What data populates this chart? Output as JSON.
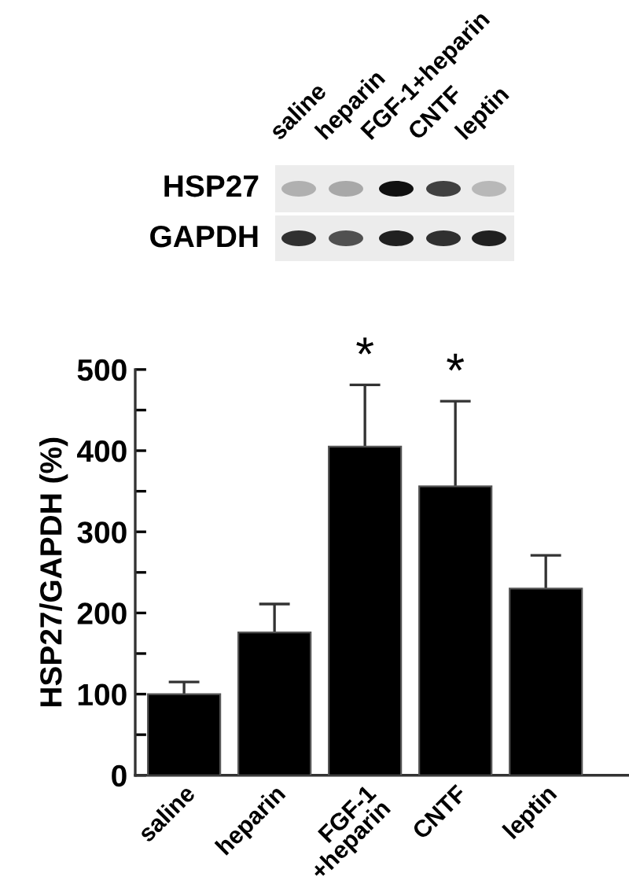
{
  "chart_data": {
    "type": "bar",
    "ylabel": "HSP27/GAPDH (%)",
    "categories": [
      "saline",
      "heparin",
      "FGF-1\n+heparin",
      "CNTF",
      "leptin"
    ],
    "values": [
      100,
      176,
      405,
      356,
      230
    ],
    "errors": [
      15,
      35,
      76,
      105,
      41
    ],
    "color": "#000000",
    "ylim": [
      0,
      500
    ],
    "yticks": [
      0,
      {
        "value": 50,
        "label": null
      },
      100,
      {
        "value": 150,
        "label": null
      },
      200,
      {
        "value": 250,
        "label": null
      },
      300,
      {
        "value": 350,
        "label": null
      },
      400,
      {
        "value": 450,
        "label": null
      },
      500
    ],
    "grid": false,
    "annotations": [
      {
        "text": "*",
        "x": "FGF-1\n+heparin",
        "y": 481
      },
      {
        "text": "*",
        "x": "CNTF",
        "y": 461
      },
      "saline",
      "heparin",
      "FGF-1+heparin",
      "CNTF",
      "leptin",
      "HSP27",
      "GAPDH"
    ]
  }
}
